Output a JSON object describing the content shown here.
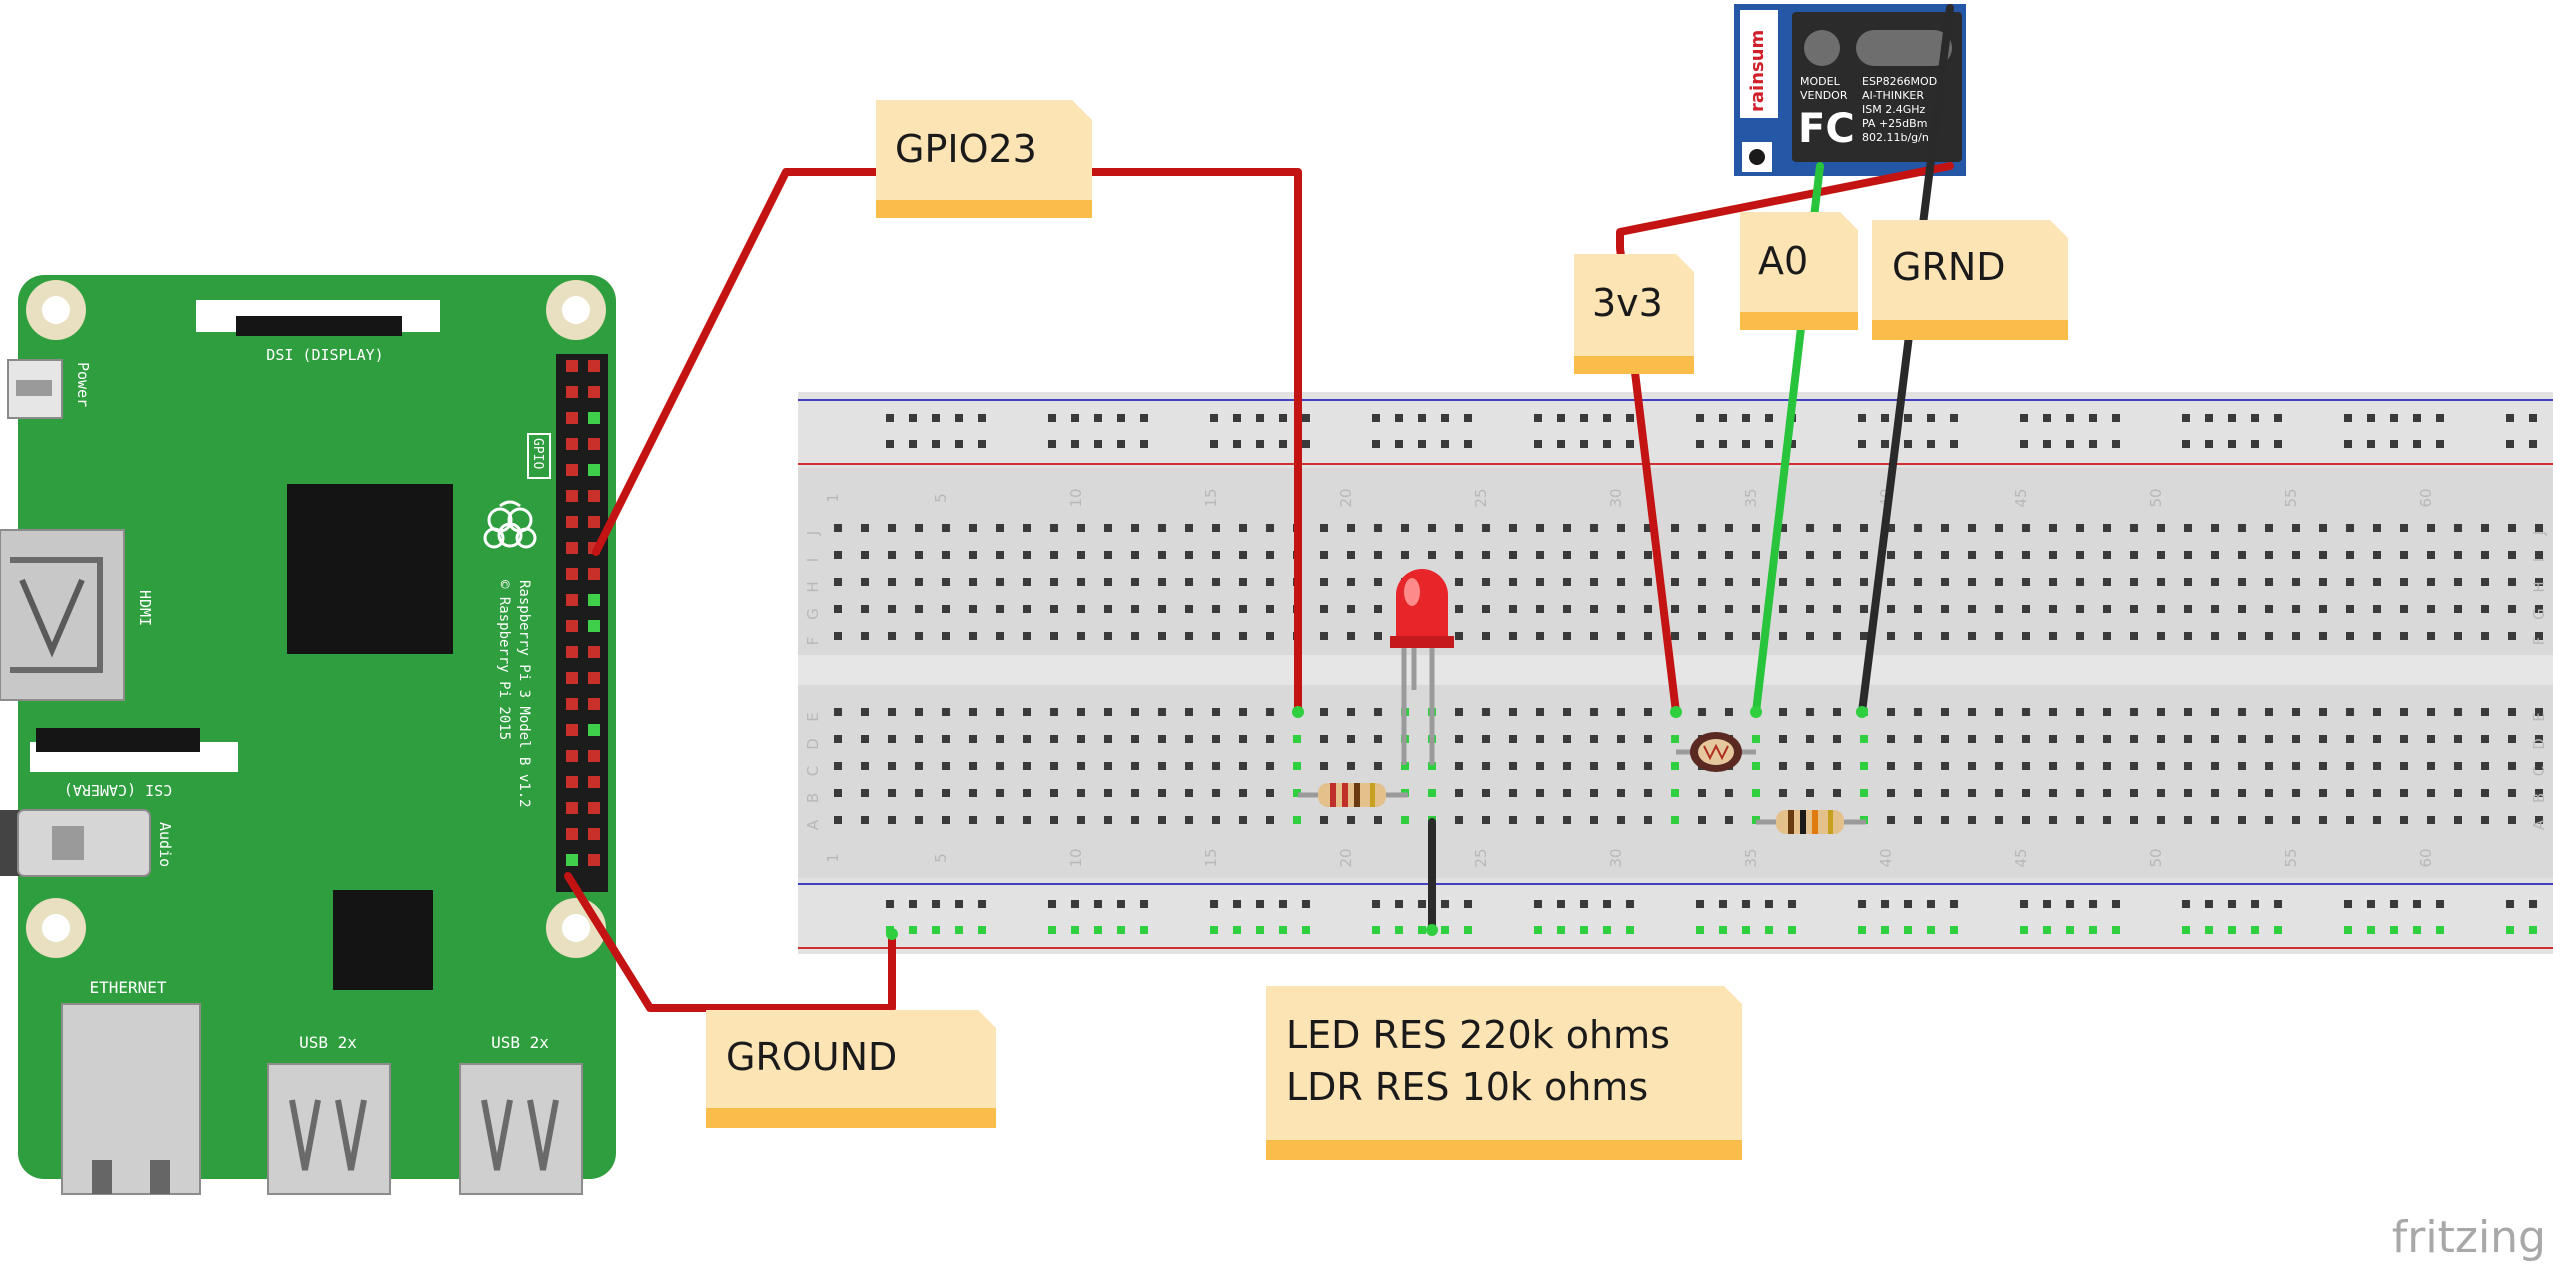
{
  "notes": {
    "gpio23": "GPIO23",
    "ground": "GROUND",
    "v3v3": "3v3",
    "a0": "A0",
    "grnd": "GRND",
    "res_line1": "LED RES 220k ohms",
    "res_line2": "LDR RES 10k ohms"
  },
  "rpi": {
    "dsi": "DSI (DISPLAY)",
    "csi": "CSI (CAMERA)",
    "hdmi": "HDMI",
    "power": "Power",
    "audio": "Audio",
    "gpio": "GPIO",
    "ethernet": "ETHERNET",
    "usb1": "USB 2x",
    "usb2": "USB 2x",
    "model": "Raspberry Pi 3 Model B v1.2",
    "copyright": "© Raspberry Pi 2015"
  },
  "esp": {
    "brand": "rainsum",
    "model_label": "MODEL",
    "vendor_label": "VENDOR",
    "model_value": "ESP8266MOD",
    "vendor_value": "AI-THINKER",
    "ism": "ISM 2.4GHz",
    "pa": "PA  +25dBm",
    "wifi": "802.11b/g/n",
    "fcc": "FC"
  },
  "breadboard": {
    "columns": [
      "1",
      "5",
      "10",
      "15",
      "20",
      "25",
      "30",
      "35",
      "40",
      "45",
      "50",
      "55",
      "60"
    ],
    "rows_top": [
      "J",
      "I",
      "H",
      "G",
      "F"
    ],
    "rows_bottom": [
      "E",
      "D",
      "C",
      "B",
      "A"
    ]
  },
  "watermark": "fritzing",
  "colors": {
    "board_green": "#2f9e3f",
    "wire_red": "#c31313",
    "wire_green": "#27c43c",
    "wire_black": "#2a2a2a",
    "note_fill": "#fde4b5",
    "note_footer": "#fbbd4a",
    "breadboard": "#dadada"
  }
}
